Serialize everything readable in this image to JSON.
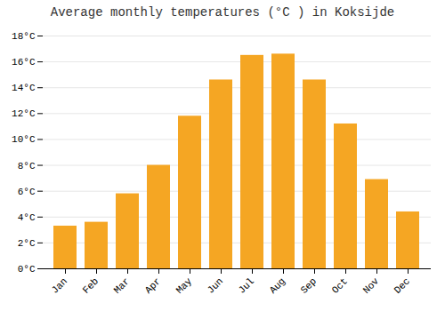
{
  "chart_data": {
    "type": "bar",
    "title": "Average monthly temperatures (°C ) in Koksijde",
    "categories": [
      "Jan",
      "Feb",
      "Mar",
      "Apr",
      "May",
      "Jun",
      "Jul",
      "Aug",
      "Sep",
      "Oct",
      "Nov",
      "Dec"
    ],
    "values": [
      3.3,
      3.6,
      5.8,
      8.0,
      11.8,
      14.6,
      16.5,
      16.6,
      14.6,
      11.2,
      6.9,
      4.4
    ],
    "color": "#F5A623",
    "ylim": [
      0,
      18
    ],
    "yticks": [
      {
        "value": 0,
        "label": "0°C"
      },
      {
        "value": 2,
        "label": "2°C"
      },
      {
        "value": 4,
        "label": "4°C"
      },
      {
        "value": 6,
        "label": "6°C"
      },
      {
        "value": 8,
        "label": "8°C"
      },
      {
        "value": 10,
        "label": "10°C"
      },
      {
        "value": 12,
        "label": "12°C"
      },
      {
        "value": 14,
        "label": "14°C"
      },
      {
        "value": 16,
        "label": "16°C"
      },
      {
        "value": 18,
        "label": "18°C"
      }
    ],
    "grid": true
  }
}
